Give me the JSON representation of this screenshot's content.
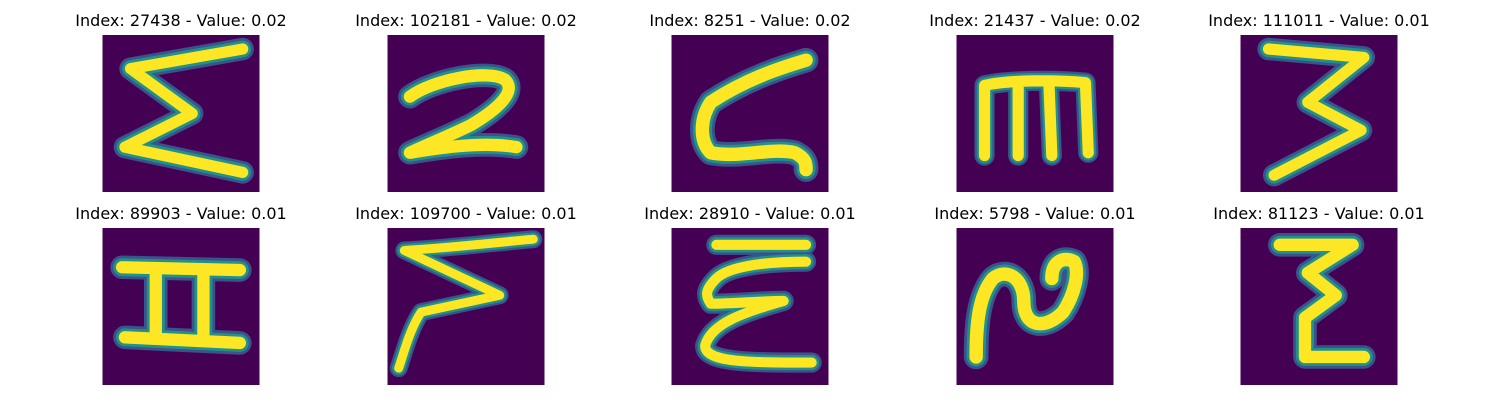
{
  "figure": {
    "panels": [
      {
        "title": "Index: 27438 - Value: 0.02",
        "glyph": "sigma-zigzag"
      },
      {
        "title": "Index: 102181 - Value: 0.02",
        "glyph": "digit-2"
      },
      {
        "title": "Index: 8251 - Value: 0.02",
        "glyph": "letter-z-curved"
      },
      {
        "title": "Index: 21437 - Value: 0.02",
        "glyph": "letter-m"
      },
      {
        "title": "Index: 111011 - Value: 0.01",
        "glyph": "digit-3-zigzag"
      },
      {
        "title": "Index: 89903 - Value: 0.01",
        "glyph": "letter-i-serif"
      },
      {
        "title": "Index: 109700 - Value: 0.01",
        "glyph": "zigzag-slanted"
      },
      {
        "title": "Index: 28910 - Value: 0.01",
        "glyph": "letter-e-curly"
      },
      {
        "title": "Index: 5798 - Value: 0.01",
        "glyph": "letter-n-swirl"
      },
      {
        "title": "Index: 81123 - Value: 0.01",
        "glyph": "letter-z-small"
      }
    ],
    "colors": {
      "background": "#440154",
      "stroke": "#fde725",
      "edge": "#21918c",
      "halo": "#3b528b"
    }
  }
}
